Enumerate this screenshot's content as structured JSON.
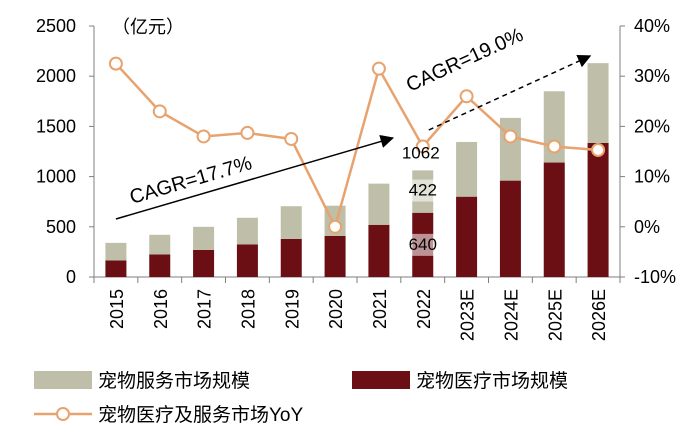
{
  "chart_data": {
    "type": "bar+line",
    "unit_label": "（亿元）",
    "categories": [
      "2015",
      "2016",
      "2017",
      "2018",
      "2019",
      "2020",
      "2021",
      "2022",
      "2023E",
      "2024E",
      "2025E",
      "2026E"
    ],
    "series": [
      {
        "name": "宠物服务市场规模",
        "kind": "stacked-bar",
        "color": "#BFBFA9",
        "values": [
          175,
          195,
          230,
          265,
          325,
          300,
          410,
          422,
          545,
          625,
          710,
          795
        ]
      },
      {
        "name": "宠物医疗市场规模",
        "kind": "stacked-bar",
        "color": "#6B0F14",
        "values": [
          165,
          225,
          270,
          325,
          380,
          410,
          520,
          640,
          800,
          960,
          1140,
          1335
        ]
      },
      {
        "name": "宠物医疗及服务市场YoY",
        "kind": "line",
        "axis": "right",
        "color": "#E8A26E",
        "values": [
          32.5,
          23.0,
          18.0,
          18.7,
          17.5,
          0.0,
          31.5,
          16.0,
          26.0,
          18.0,
          16.0,
          15.3
        ]
      }
    ],
    "y_left": {
      "min": 0,
      "max": 2500,
      "ticks": [
        0,
        500,
        1000,
        1500,
        2000,
        2500
      ]
    },
    "y_right": {
      "min": -10,
      "max": 40,
      "ticks": [
        "-10%",
        "0%",
        "10%",
        "20%",
        "30%",
        "40%"
      ]
    },
    "data_labels": {
      "category": "2022",
      "total": "1062",
      "service": "422",
      "medical": "640"
    },
    "annotations": [
      {
        "text": "CAGR=17.7%",
        "from": "2015",
        "to": "2022"
      },
      {
        "text": "CAGR=19.0%",
        "from": "2022",
        "to": "2026E",
        "dashed": true
      }
    ],
    "legend_placement": "bottom"
  }
}
